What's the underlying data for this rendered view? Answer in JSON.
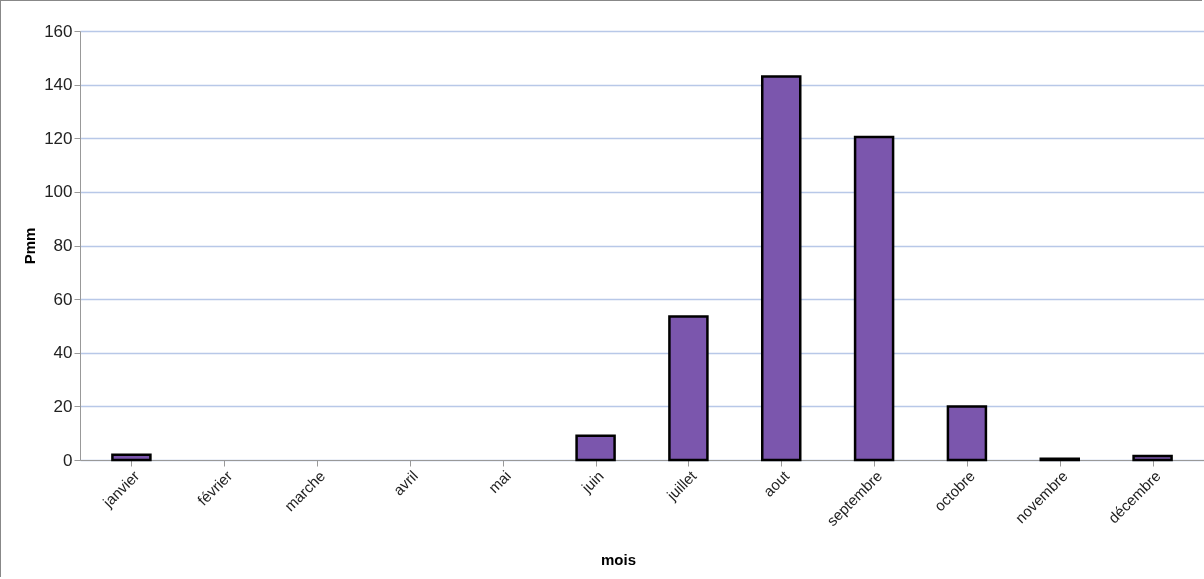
{
  "chart_data": {
    "type": "bar",
    "xlabel": "mois",
    "ylabel": "Pmm",
    "categories": [
      "janvier",
      "février",
      "marche",
      "avril",
      "mai",
      "juin",
      "juillet",
      "aout",
      "septembre",
      "octobre",
      "novembre",
      "décembre"
    ],
    "values": [
      2,
      0,
      0,
      0,
      0,
      9,
      53.5,
      143,
      120.5,
      20,
      0.5,
      1.5
    ],
    "color": "#7b56ad",
    "ylim": [
      0,
      160
    ],
    "yticks": [
      0,
      20,
      40,
      60,
      80,
      100,
      120,
      140,
      160
    ],
    "grid": "y"
  }
}
